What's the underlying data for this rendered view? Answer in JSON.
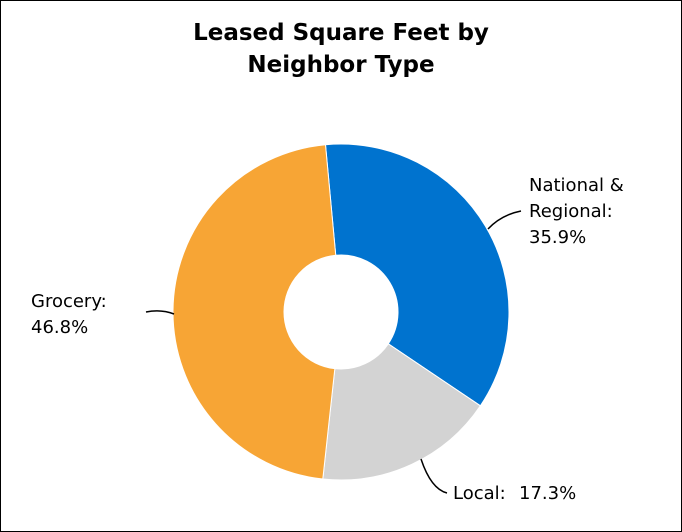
{
  "chart_data": {
    "type": "donut",
    "title": "Leased Square Feet by Neighbor Type",
    "categories": [
      "National & Regional:",
      "Local:",
      "Grocery:"
    ],
    "values": [
      35.9,
      17.3,
      46.8
    ],
    "value_labels": [
      "35.9%",
      "17.3%",
      "46.8%"
    ],
    "colors": [
      "#0073cf",
      "#d3d3d3",
      "#f7a535"
    ]
  }
}
